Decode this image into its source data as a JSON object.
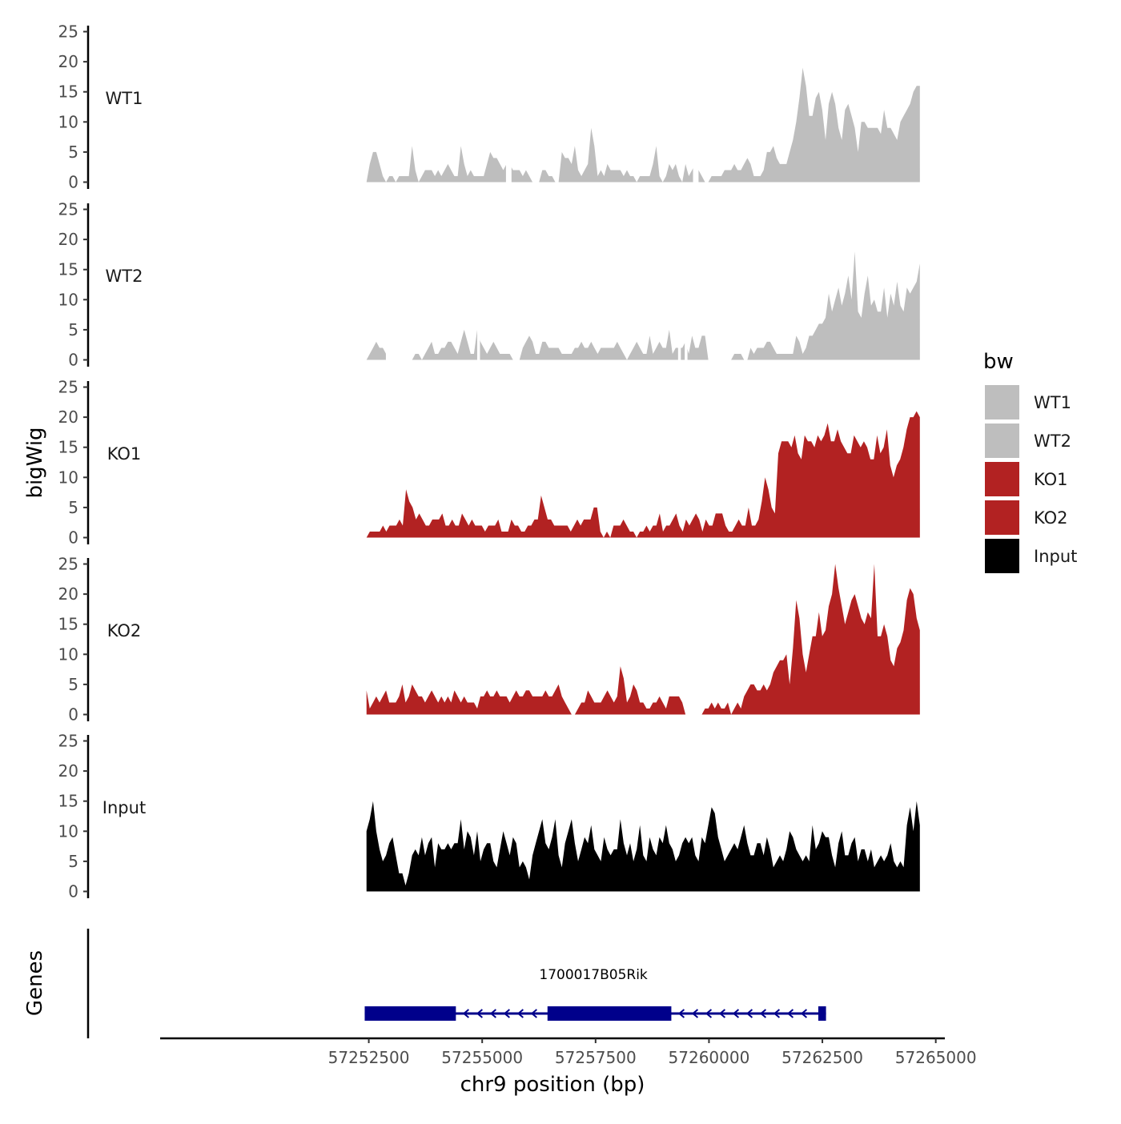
{
  "chart_data": {
    "type": "area",
    "xlabel": "chr9 position (bp)",
    "ylabel": "bigWig",
    "genes_label": "Genes",
    "xlim": [
      57247900,
      57265200
    ],
    "x_ticks": [
      57252500,
      57255000,
      57257500,
      57260000,
      57262500,
      57265000
    ],
    "x_tick_labels": [
      "57252500",
      "57255000",
      "57257500",
      "57260000",
      "57262500",
      "57265000"
    ],
    "ylim": [
      0,
      26
    ],
    "y_ticks": [
      0,
      5,
      10,
      15,
      20,
      25
    ],
    "y_tick_labels": [
      "0",
      "5",
      "10",
      "15",
      "20",
      "25"
    ],
    "x_start": 57252450,
    "x_end": 57264650,
    "legend": {
      "title": "bw",
      "entries": [
        {
          "label": "WT1",
          "color": "#bebebe"
        },
        {
          "label": "WT2",
          "color": "#bebebe"
        },
        {
          "label": "KO1",
          "color": "#b22222"
        },
        {
          "label": "KO2",
          "color": "#b22222"
        },
        {
          "label": "Input",
          "color": "#000000"
        }
      ]
    },
    "series": [
      {
        "name": "WT1",
        "color": "#bebebe",
        "values": [
          0,
          3,
          5,
          5,
          3,
          1,
          0,
          1,
          1,
          0,
          1,
          1,
          1,
          1,
          6,
          2,
          0,
          1,
          2,
          2,
          2,
          1,
          2,
          1,
          2,
          3,
          2,
          1,
          1,
          6,
          3,
          1,
          2,
          1,
          1,
          1,
          1,
          3,
          5,
          4,
          4,
          3,
          2,
          3,
          3,
          2,
          2,
          2,
          1,
          2,
          1,
          0,
          0,
          0,
          2,
          2,
          1,
          1,
          0,
          0,
          5,
          4,
          4,
          3,
          6,
          2,
          1,
          2,
          3,
          9,
          6,
          1,
          2,
          1,
          3,
          2,
          2,
          2,
          2,
          1,
          2,
          1,
          1,
          0,
          1,
          1,
          1,
          1,
          3,
          6,
          1,
          0,
          1,
          3,
          2,
          3,
          1,
          0,
          3,
          1,
          2,
          3,
          2,
          1,
          0,
          0,
          1,
          1,
          1,
          1,
          2,
          2,
          2,
          3,
          2,
          2,
          3,
          4,
          3,
          1,
          1,
          1,
          2,
          5,
          5,
          6,
          4,
          3,
          3,
          3,
          5,
          7,
          10,
          14,
          19,
          16,
          11,
          11,
          14,
          15,
          12,
          7,
          13,
          15,
          13,
          9,
          7,
          12,
          13,
          11,
          9,
          5,
          10,
          10,
          9,
          9,
          9,
          9,
          8,
          12,
          9,
          9,
          8,
          7,
          10,
          11,
          12,
          13,
          15,
          16,
          16
        ],
        "gaps": [
          [
            0.252,
            0.262
          ],
          [
            0.59,
            0.6
          ]
        ]
      },
      {
        "name": "WT2",
        "color": "#bebebe",
        "values": [
          0,
          1,
          2,
          3,
          2,
          2,
          1,
          0,
          0,
          0,
          0,
          0,
          0,
          0,
          0,
          1,
          1,
          0,
          1,
          2,
          3,
          1,
          1,
          2,
          2,
          3,
          3,
          2,
          1,
          3,
          5,
          3,
          1,
          1,
          5,
          3,
          2,
          1,
          2,
          3,
          2,
          1,
          1,
          1,
          1,
          0,
          0,
          0,
          2,
          3,
          4,
          3,
          1,
          1,
          3,
          3,
          2,
          2,
          2,
          2,
          1,
          1,
          1,
          1,
          2,
          2,
          3,
          2,
          2,
          3,
          2,
          1,
          2,
          2,
          2,
          2,
          2,
          3,
          2,
          1,
          0,
          1,
          2,
          3,
          2,
          1,
          1,
          4,
          1,
          2,
          3,
          2,
          2,
          5,
          1,
          2,
          2,
          2,
          3,
          1,
          4,
          2,
          2,
          4,
          4,
          0,
          0,
          0,
          0,
          0,
          0,
          0,
          0,
          1,
          1,
          1,
          0,
          0,
          2,
          1,
          2,
          2,
          2,
          3,
          3,
          2,
          1,
          1,
          1,
          1,
          1,
          1,
          4,
          3,
          1,
          2,
          4,
          4,
          5,
          6,
          6,
          7,
          11,
          8,
          10,
          12,
          9,
          11,
          14,
          10,
          18,
          8,
          7,
          11,
          14,
          9,
          10,
          8,
          8,
          12,
          7,
          11,
          9,
          13,
          9,
          8,
          12,
          11,
          12,
          13,
          16
        ],
        "gaps": [
          [
            0.035,
            0.06
          ],
          [
            0.2,
            0.205
          ],
          [
            0.563,
            0.568
          ],
          [
            0.575,
            0.58
          ]
        ]
      },
      {
        "name": "KO1",
        "color": "#b22222",
        "values": [
          0,
          1,
          1,
          1,
          1,
          2,
          1,
          2,
          2,
          2,
          3,
          2,
          8,
          6,
          5,
          3,
          4,
          3,
          2,
          2,
          3,
          3,
          3,
          4,
          2,
          2,
          3,
          2,
          2,
          4,
          3,
          2,
          3,
          2,
          2,
          2,
          1,
          2,
          2,
          2,
          3,
          1,
          1,
          1,
          3,
          2,
          2,
          1,
          1,
          2,
          2,
          3,
          3,
          7,
          5,
          3,
          3,
          2,
          2,
          2,
          2,
          2,
          1,
          2,
          3,
          2,
          3,
          3,
          3,
          5,
          5,
          1,
          0,
          1,
          0,
          2,
          2,
          2,
          3,
          2,
          1,
          1,
          0,
          1,
          1,
          2,
          1,
          2,
          2,
          4,
          1,
          2,
          2,
          3,
          4,
          2,
          1,
          3,
          2,
          3,
          4,
          3,
          1,
          3,
          2,
          2,
          4,
          4,
          4,
          2,
          1,
          1,
          2,
          3,
          2,
          2,
          5,
          2,
          2,
          3,
          6,
          10,
          8,
          5,
          4,
          14,
          16,
          16,
          16,
          15,
          17,
          14,
          13,
          17,
          16,
          16,
          15,
          17,
          16,
          17,
          19,
          16,
          16,
          18,
          16,
          15,
          14,
          14,
          17,
          16,
          15,
          16,
          15,
          13,
          13,
          17,
          14,
          15,
          18,
          12,
          10,
          12,
          13,
          15,
          18,
          20,
          20,
          21,
          20
        ]
      },
      {
        "name": "KO2",
        "color": "#b22222",
        "values": [
          4,
          1,
          2,
          3,
          2,
          3,
          4,
          2,
          2,
          2,
          3,
          5,
          2,
          3,
          5,
          4,
          3,
          3,
          2,
          3,
          4,
          3,
          2,
          3,
          2,
          3,
          2,
          4,
          3,
          2,
          3,
          2,
          2,
          2,
          1,
          3,
          3,
          4,
          3,
          3,
          4,
          3,
          3,
          3,
          2,
          3,
          4,
          3,
          3,
          4,
          4,
          3,
          3,
          3,
          3,
          4,
          3,
          3,
          4,
          5,
          3,
          2,
          1,
          0,
          0,
          1,
          2,
          2,
          4,
          3,
          2,
          2,
          2,
          3,
          4,
          3,
          2,
          3,
          8,
          6,
          2,
          3,
          5,
          4,
          2,
          2,
          1,
          1,
          2,
          2,
          3,
          2,
          1,
          3,
          3,
          3,
          3,
          2,
          0,
          0,
          0,
          0,
          0,
          0,
          1,
          1,
          2,
          1,
          2,
          1,
          1,
          2,
          0,
          1,
          2,
          1,
          3,
          4,
          5,
          5,
          4,
          4,
          5,
          4,
          5,
          7,
          8,
          9,
          9,
          10,
          5,
          11,
          19,
          16,
          10,
          7,
          10,
          13,
          13,
          17,
          13,
          14,
          18,
          20,
          25,
          21,
          18,
          15,
          17,
          19,
          20,
          18,
          16,
          15,
          17,
          16,
          25,
          13,
          13,
          15,
          13,
          9,
          8,
          11,
          12,
          14,
          19,
          21,
          20,
          16,
          14
        ]
      },
      {
        "name": "Input",
        "color": "#000000",
        "values": [
          10,
          12,
          15,
          10,
          7,
          5,
          6,
          8,
          9,
          6,
          3,
          3,
          1,
          3,
          6,
          7,
          6,
          9,
          6,
          8,
          9,
          4,
          8,
          7,
          7,
          8,
          7,
          8,
          8,
          12,
          7,
          10,
          9,
          6,
          10,
          5,
          7,
          8,
          8,
          5,
          4,
          7,
          10,
          8,
          6,
          9,
          8,
          4,
          5,
          4,
          2,
          6,
          8,
          10,
          12,
          8,
          7,
          9,
          12,
          6,
          4,
          8,
          10,
          12,
          8,
          5,
          7,
          9,
          8,
          11,
          7,
          6,
          5,
          9,
          7,
          6,
          7,
          7,
          12,
          8,
          6,
          8,
          5,
          7,
          11,
          6,
          5,
          9,
          7,
          6,
          9,
          8,
          11,
          8,
          7,
          5,
          6,
          8,
          9,
          8,
          9,
          6,
          5,
          9,
          8,
          11,
          14,
          13,
          9,
          7,
          5,
          6,
          7,
          8,
          7,
          9,
          11,
          8,
          6,
          6,
          8,
          8,
          6,
          9,
          7,
          4,
          5,
          6,
          5,
          7,
          10,
          9,
          7,
          6,
          5,
          6,
          5,
          11,
          7,
          8,
          10,
          9,
          9,
          6,
          4,
          8,
          10,
          6,
          6,
          8,
          9,
          5,
          7,
          7,
          5,
          7,
          4,
          5,
          6,
          5,
          6,
          8,
          5,
          4,
          5,
          4,
          11,
          14,
          10,
          15,
          11
        ]
      }
    ],
    "gene": {
      "name": "1700017B05Rik",
      "strand": "-",
      "start": 57252410,
      "end": 57262580,
      "exons": [
        [
          57252410,
          57254420
        ],
        [
          57256440,
          57259170
        ],
        [
          57262410,
          57262580
        ]
      ],
      "color": "#00008b"
    }
  }
}
